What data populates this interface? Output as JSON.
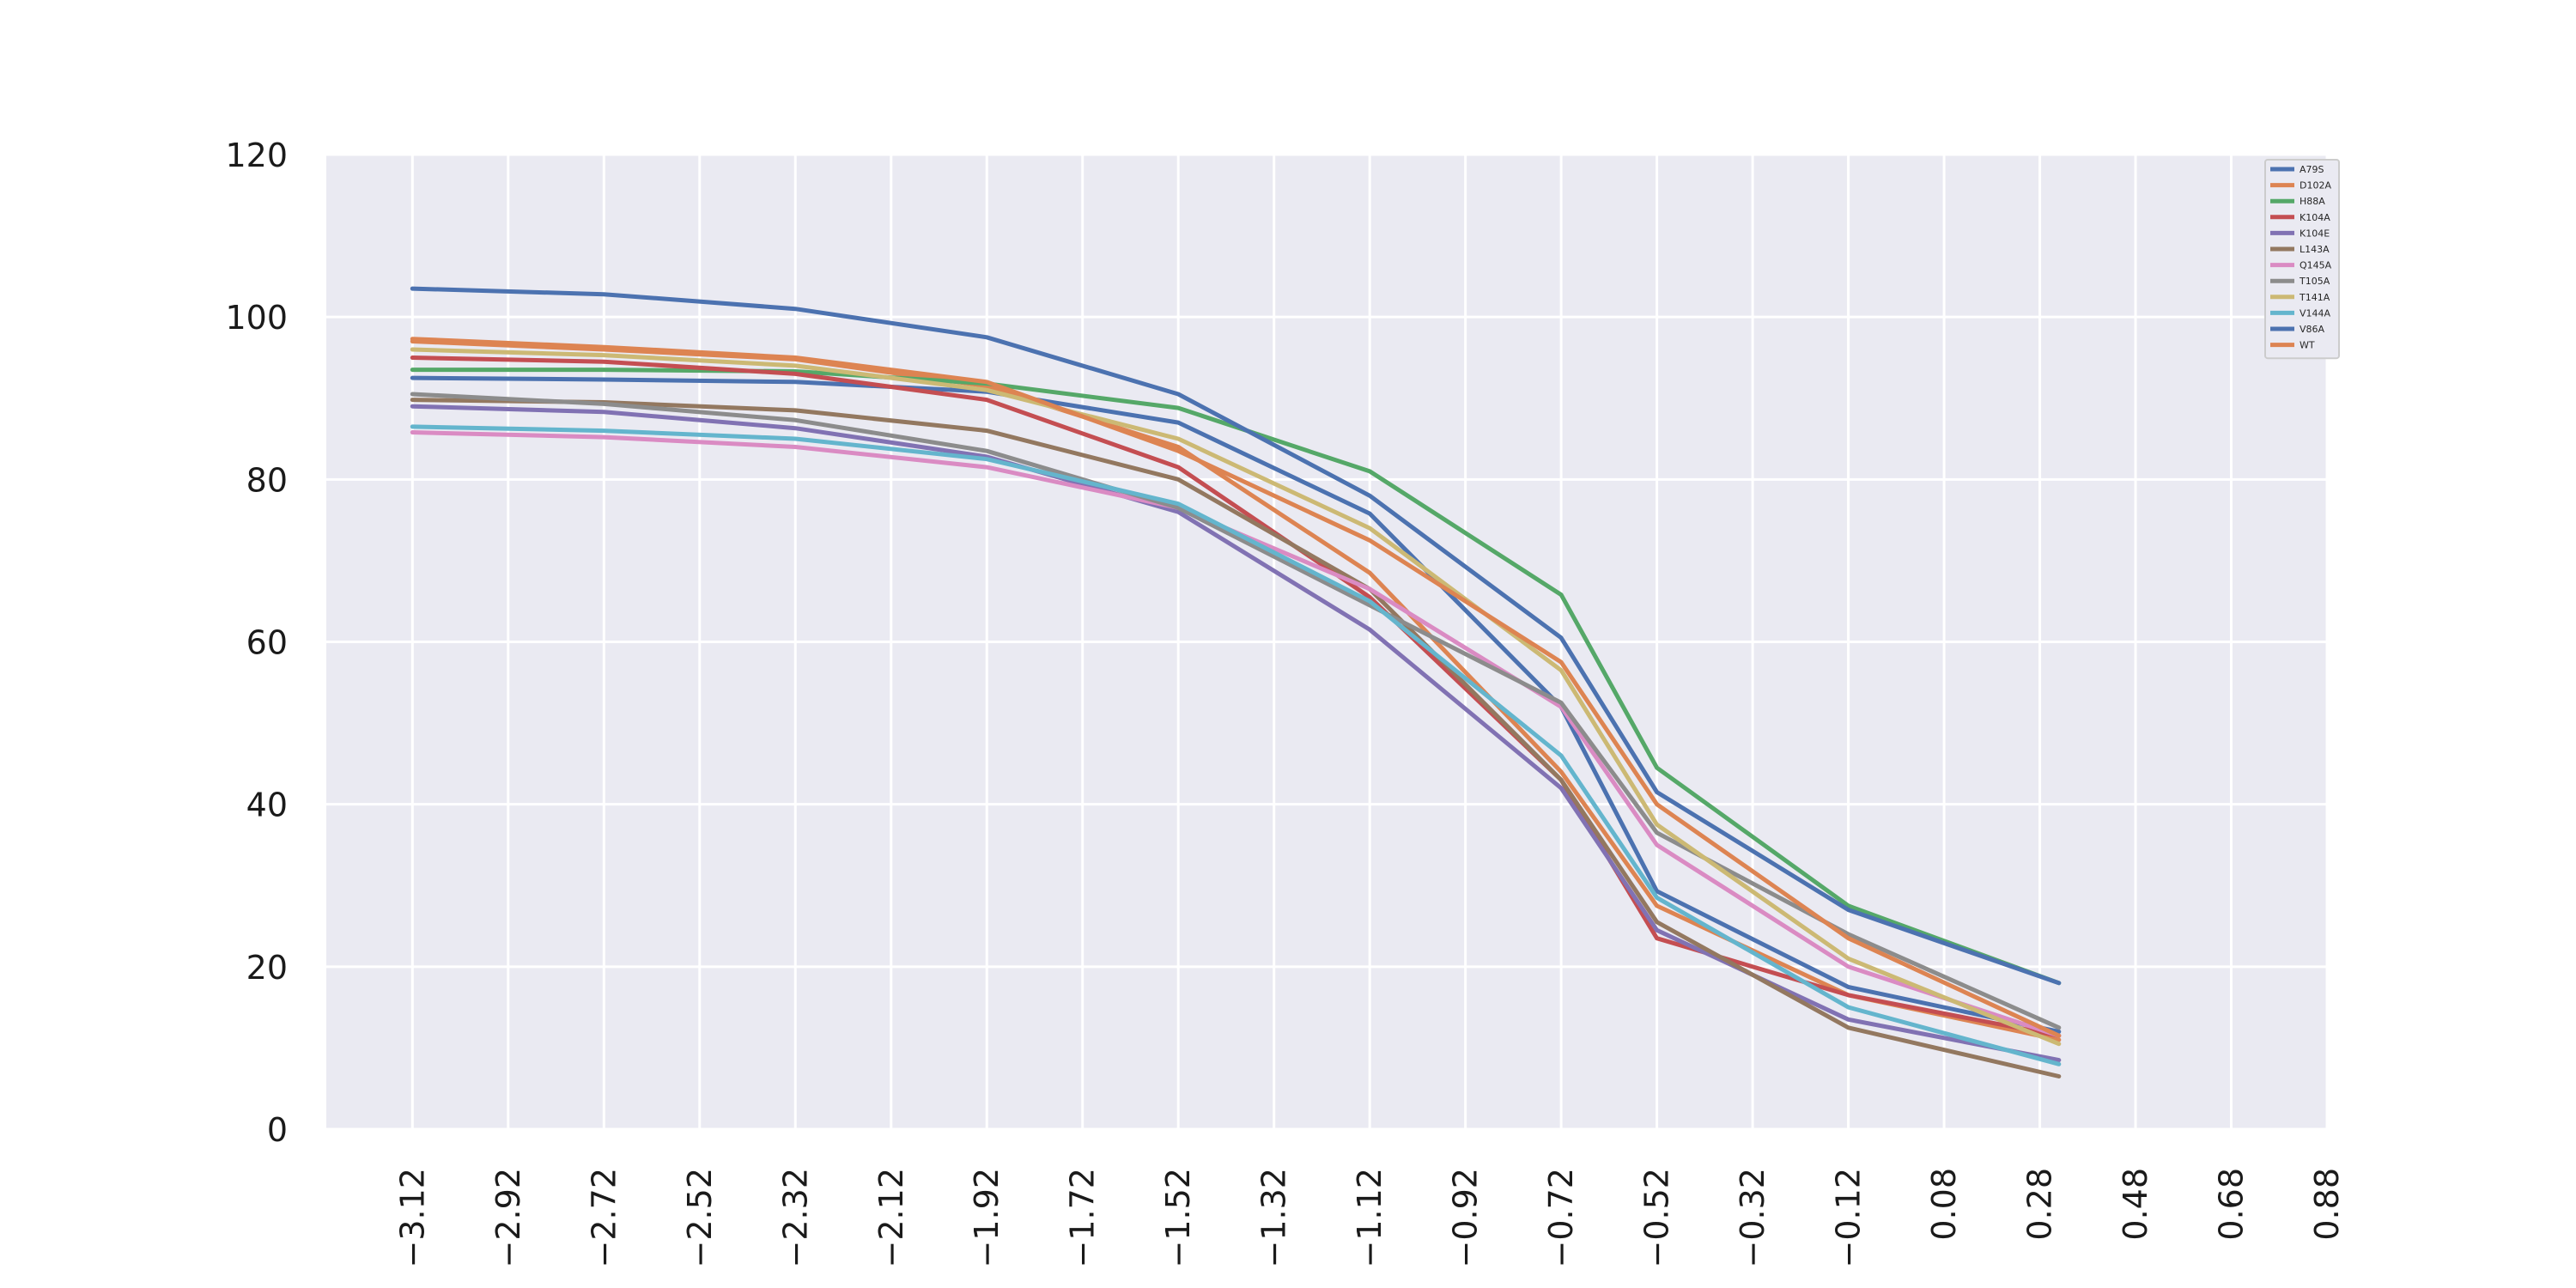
{
  "chart_data": {
    "type": "line",
    "title": "",
    "xlabel": "",
    "ylabel": "",
    "grid": true,
    "legend_position": "top-right",
    "x": [
      -3.12,
      -2.72,
      -2.32,
      -1.92,
      -1.52,
      -1.12,
      -0.72,
      -0.32,
      0.08,
      0.48
    ],
    "xticks": [
      "−3.12",
      "−2.92",
      "−2.72",
      "−2.52",
      "−2.32",
      "−2.12",
      "−1.92",
      "−1.72",
      "−1.52",
      "−1.32",
      "−1.12",
      "−0.92",
      "−0.72",
      "−0.52",
      "−0.32",
      "−0.12",
      "0.08",
      "0.28",
      "0.48",
      "0.68",
      "0.88"
    ],
    "xlim": [
      -3.3,
      0.88
    ],
    "yticks": [
      "0",
      "20",
      "40",
      "60",
      "80",
      "100",
      "120"
    ],
    "ylim": [
      0,
      120
    ],
    "series": [
      {
        "name": "A79S",
        "color": "#4c72b0",
        "values": [
          {
            "x": -3.12,
            "y": 92.5
          },
          {
            "x": -2.72,
            "y": 92.3
          },
          {
            "x": -2.32,
            "y": 92.0
          },
          {
            "x": -1.92,
            "y": 90.8
          },
          {
            "x": -1.52,
            "y": 87.0
          },
          {
            "x": -1.12,
            "y": 75.8
          },
          {
            "x": -0.72,
            "y": 52.0
          },
          {
            "x": -0.52,
            "y": 29.3
          },
          {
            "x": -0.12,
            "y": 17.5
          },
          {
            "x": 0.32,
            "y": 12.0
          }
        ]
      },
      {
        "name": "D102A",
        "color": "#dd8452",
        "values": [
          {
            "x": -3.12,
            "y": 97.0
          },
          {
            "x": -2.72,
            "y": 96.0
          },
          {
            "x": -2.32,
            "y": 94.8
          },
          {
            "x": -1.92,
            "y": 91.5
          },
          {
            "x": -1.52,
            "y": 84.0
          },
          {
            "x": -1.12,
            "y": 68.5
          },
          {
            "x": -0.72,
            "y": 44.0
          },
          {
            "x": -0.52,
            "y": 27.5
          },
          {
            "x": -0.12,
            "y": 16.5
          },
          {
            "x": 0.32,
            "y": 11.0
          }
        ]
      },
      {
        "name": "H88A",
        "color": "#55a868",
        "values": [
          {
            "x": -3.12,
            "y": 93.5
          },
          {
            "x": -2.72,
            "y": 93.5
          },
          {
            "x": -2.32,
            "y": 93.3
          },
          {
            "x": -1.92,
            "y": 91.8
          },
          {
            "x": -1.52,
            "y": 88.8
          },
          {
            "x": -1.12,
            "y": 81.0
          },
          {
            "x": -0.72,
            "y": 65.8
          },
          {
            "x": -0.52,
            "y": 44.5
          },
          {
            "x": -0.12,
            "y": 27.5
          },
          {
            "x": 0.32,
            "y": 18.0
          }
        ]
      },
      {
        "name": "K104A",
        "color": "#c44e52",
        "values": [
          {
            "x": -3.12,
            "y": 95.0
          },
          {
            "x": -2.72,
            "y": 94.5
          },
          {
            "x": -2.32,
            "y": 93.0
          },
          {
            "x": -1.92,
            "y": 89.8
          },
          {
            "x": -1.52,
            "y": 81.5
          },
          {
            "x": -1.12,
            "y": 65.5
          },
          {
            "x": -0.72,
            "y": 43.0
          },
          {
            "x": -0.52,
            "y": 23.5
          },
          {
            "x": -0.12,
            "y": 16.5
          },
          {
            "x": 0.32,
            "y": 11.5
          }
        ]
      },
      {
        "name": "K104E",
        "color": "#8172b3",
        "values": [
          {
            "x": -3.12,
            "y": 89.0
          },
          {
            "x": -2.72,
            "y": 88.3
          },
          {
            "x": -2.32,
            "y": 86.3
          },
          {
            "x": -1.92,
            "y": 82.8
          },
          {
            "x": -1.52,
            "y": 76.0
          },
          {
            "x": -1.12,
            "y": 61.5
          },
          {
            "x": -0.72,
            "y": 42.0
          },
          {
            "x": -0.52,
            "y": 24.5
          },
          {
            "x": -0.12,
            "y": 13.5
          },
          {
            "x": 0.32,
            "y": 8.5
          }
        ]
      },
      {
        "name": "L143A",
        "color": "#937860",
        "values": [
          {
            "x": -3.12,
            "y": 89.8
          },
          {
            "x": -2.72,
            "y": 89.5
          },
          {
            "x": -2.32,
            "y": 88.5
          },
          {
            "x": -1.92,
            "y": 86.0
          },
          {
            "x": -1.52,
            "y": 80.0
          },
          {
            "x": -1.12,
            "y": 66.5
          },
          {
            "x": -0.72,
            "y": 43.0
          },
          {
            "x": -0.52,
            "y": 25.5
          },
          {
            "x": -0.12,
            "y": 12.5
          },
          {
            "x": 0.32,
            "y": 6.5
          }
        ]
      },
      {
        "name": "Q145A",
        "color": "#da8bc3",
        "values": [
          {
            "x": -3.12,
            "y": 85.8
          },
          {
            "x": -2.72,
            "y": 85.2
          },
          {
            "x": -2.32,
            "y": 84.0
          },
          {
            "x": -1.92,
            "y": 81.5
          },
          {
            "x": -1.52,
            "y": 76.5
          },
          {
            "x": -1.12,
            "y": 66.5
          },
          {
            "x": -0.72,
            "y": 52.0
          },
          {
            "x": -0.52,
            "y": 35.0
          },
          {
            "x": -0.12,
            "y": 20.0
          },
          {
            "x": 0.32,
            "y": 11.5
          }
        ]
      },
      {
        "name": "T105A",
        "color": "#8c8c8c",
        "values": [
          {
            "x": -3.12,
            "y": 90.5
          },
          {
            "x": -2.72,
            "y": 89.3
          },
          {
            "x": -2.32,
            "y": 87.3
          },
          {
            "x": -1.92,
            "y": 83.5
          },
          {
            "x": -1.52,
            "y": 76.5
          },
          {
            "x": -1.12,
            "y": 64.5
          },
          {
            "x": -0.72,
            "y": 52.5
          },
          {
            "x": -0.52,
            "y": 36.5
          },
          {
            "x": -0.12,
            "y": 24.0
          },
          {
            "x": 0.32,
            "y": 12.5
          }
        ]
      },
      {
        "name": "T141A",
        "color": "#ccb974",
        "values": [
          {
            "x": -3.12,
            "y": 96.0
          },
          {
            "x": -2.72,
            "y": 95.3
          },
          {
            "x": -2.32,
            "y": 94.0
          },
          {
            "x": -1.92,
            "y": 91.0
          },
          {
            "x": -1.52,
            "y": 85.0
          },
          {
            "x": -1.12,
            "y": 74.0
          },
          {
            "x": -0.72,
            "y": 56.5
          },
          {
            "x": -0.52,
            "y": 37.5
          },
          {
            "x": -0.12,
            "y": 21.0
          },
          {
            "x": 0.32,
            "y": 10.5
          }
        ]
      },
      {
        "name": "V144A",
        "color": "#64b5cd",
        "values": [
          {
            "x": -3.12,
            "y": 86.5
          },
          {
            "x": -2.72,
            "y": 86.0
          },
          {
            "x": -2.32,
            "y": 85.0
          },
          {
            "x": -1.92,
            "y": 82.5
          },
          {
            "x": -1.52,
            "y": 77.0
          },
          {
            "x": -1.12,
            "y": 65.0
          },
          {
            "x": -0.72,
            "y": 46.0
          },
          {
            "x": -0.52,
            "y": 28.5
          },
          {
            "x": -0.12,
            "y": 15.0
          },
          {
            "x": 0.32,
            "y": 8.0
          }
        ]
      },
      {
        "name": "V86A",
        "color": "#4c72b0",
        "values": [
          {
            "x": -3.12,
            "y": 103.5
          },
          {
            "x": -2.72,
            "y": 102.8
          },
          {
            "x": -2.32,
            "y": 101.0
          },
          {
            "x": -1.92,
            "y": 97.5
          },
          {
            "x": -1.52,
            "y": 90.5
          },
          {
            "x": -1.12,
            "y": 78.0
          },
          {
            "x": -0.72,
            "y": 60.5
          },
          {
            "x": -0.52,
            "y": 41.5
          },
          {
            "x": -0.12,
            "y": 27.0
          },
          {
            "x": 0.32,
            "y": 18.0
          }
        ]
      },
      {
        "name": "WT",
        "color": "#dd8452",
        "values": [
          {
            "x": -3.12,
            "y": 97.3
          },
          {
            "x": -2.72,
            "y": 96.3
          },
          {
            "x": -2.32,
            "y": 95.0
          },
          {
            "x": -1.92,
            "y": 92.0
          },
          {
            "x": -1.52,
            "y": 83.5
          },
          {
            "x": -1.12,
            "y": 72.5
          },
          {
            "x": -0.72,
            "y": 57.5
          },
          {
            "x": -0.52,
            "y": 40.0
          },
          {
            "x": -0.12,
            "y": 23.5
          },
          {
            "x": 0.32,
            "y": 11.5
          }
        ]
      }
    ]
  }
}
